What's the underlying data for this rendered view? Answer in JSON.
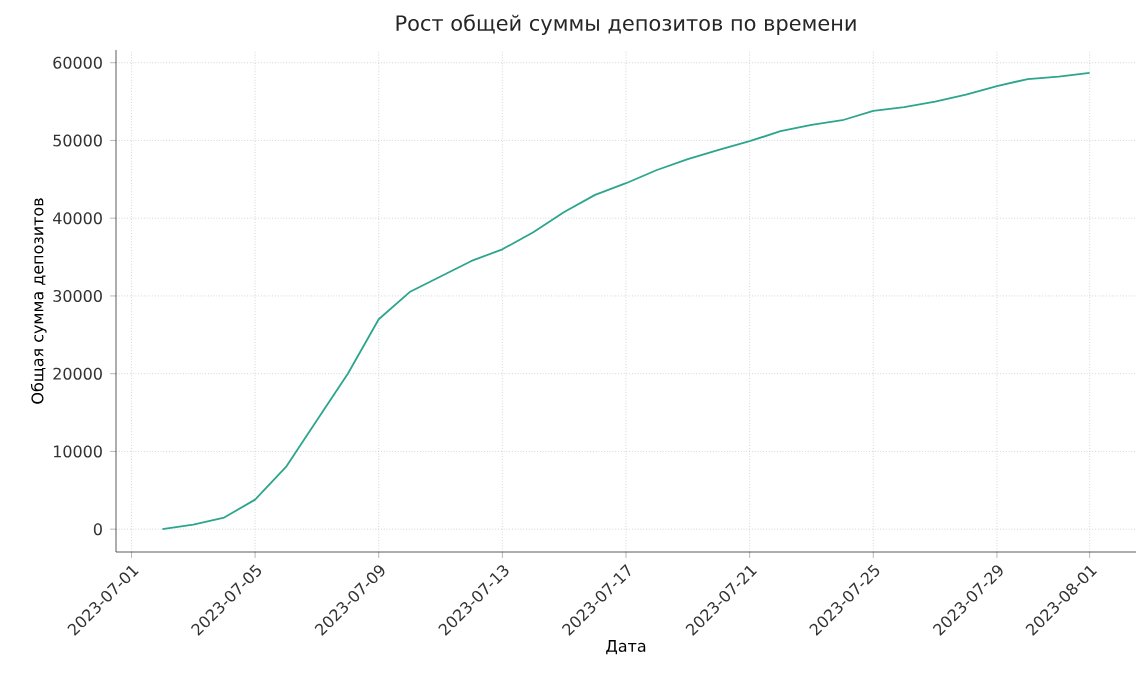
{
  "chart_data": {
    "type": "line",
    "title": "Рост общей суммы депозитов по времени",
    "xlabel": "Дата",
    "ylabel": "Общая сумма депозитов",
    "x": [
      "2023-07-02",
      "2023-07-03",
      "2023-07-04",
      "2023-07-05",
      "2023-07-06",
      "2023-07-07",
      "2023-07-08",
      "2023-07-09",
      "2023-07-10",
      "2023-07-11",
      "2023-07-12",
      "2023-07-13",
      "2023-07-14",
      "2023-07-15",
      "2023-07-16",
      "2023-07-17",
      "2023-07-18",
      "2023-07-19",
      "2023-07-20",
      "2023-07-21",
      "2023-07-22",
      "2023-07-23",
      "2023-07-24",
      "2023-07-25",
      "2023-07-26",
      "2023-07-27",
      "2023-07-28",
      "2023-07-29",
      "2023-07-30",
      "2023-07-31",
      "2023-08-01"
    ],
    "series": [
      {
        "color": "#2ca58d",
        "values": [
          0,
          600,
          1500,
          3800,
          8000,
          14000,
          20000,
          27000,
          30500,
          32500,
          34500,
          36000,
          38200,
          40800,
          43000,
          44500,
          46200,
          47600,
          48800,
          49900,
          51200,
          52000,
          52600,
          53800,
          54300,
          55000,
          55900,
          57000,
          57900,
          58200,
          58700
        ]
      }
    ],
    "xlim": [
      "2023-06-30T12:00",
      "2023-08-02T12:00"
    ],
    "ylim": [
      -2935,
      61635
    ],
    "xticks": [
      "2023-07-01",
      "2023-07-05",
      "2023-07-09",
      "2023-07-13",
      "2023-07-17",
      "2023-07-21",
      "2023-07-25",
      "2023-07-29",
      "2023-08-01"
    ],
    "yticks": [
      0,
      10000,
      20000,
      30000,
      40000,
      50000,
      60000
    ],
    "grid": true
  }
}
